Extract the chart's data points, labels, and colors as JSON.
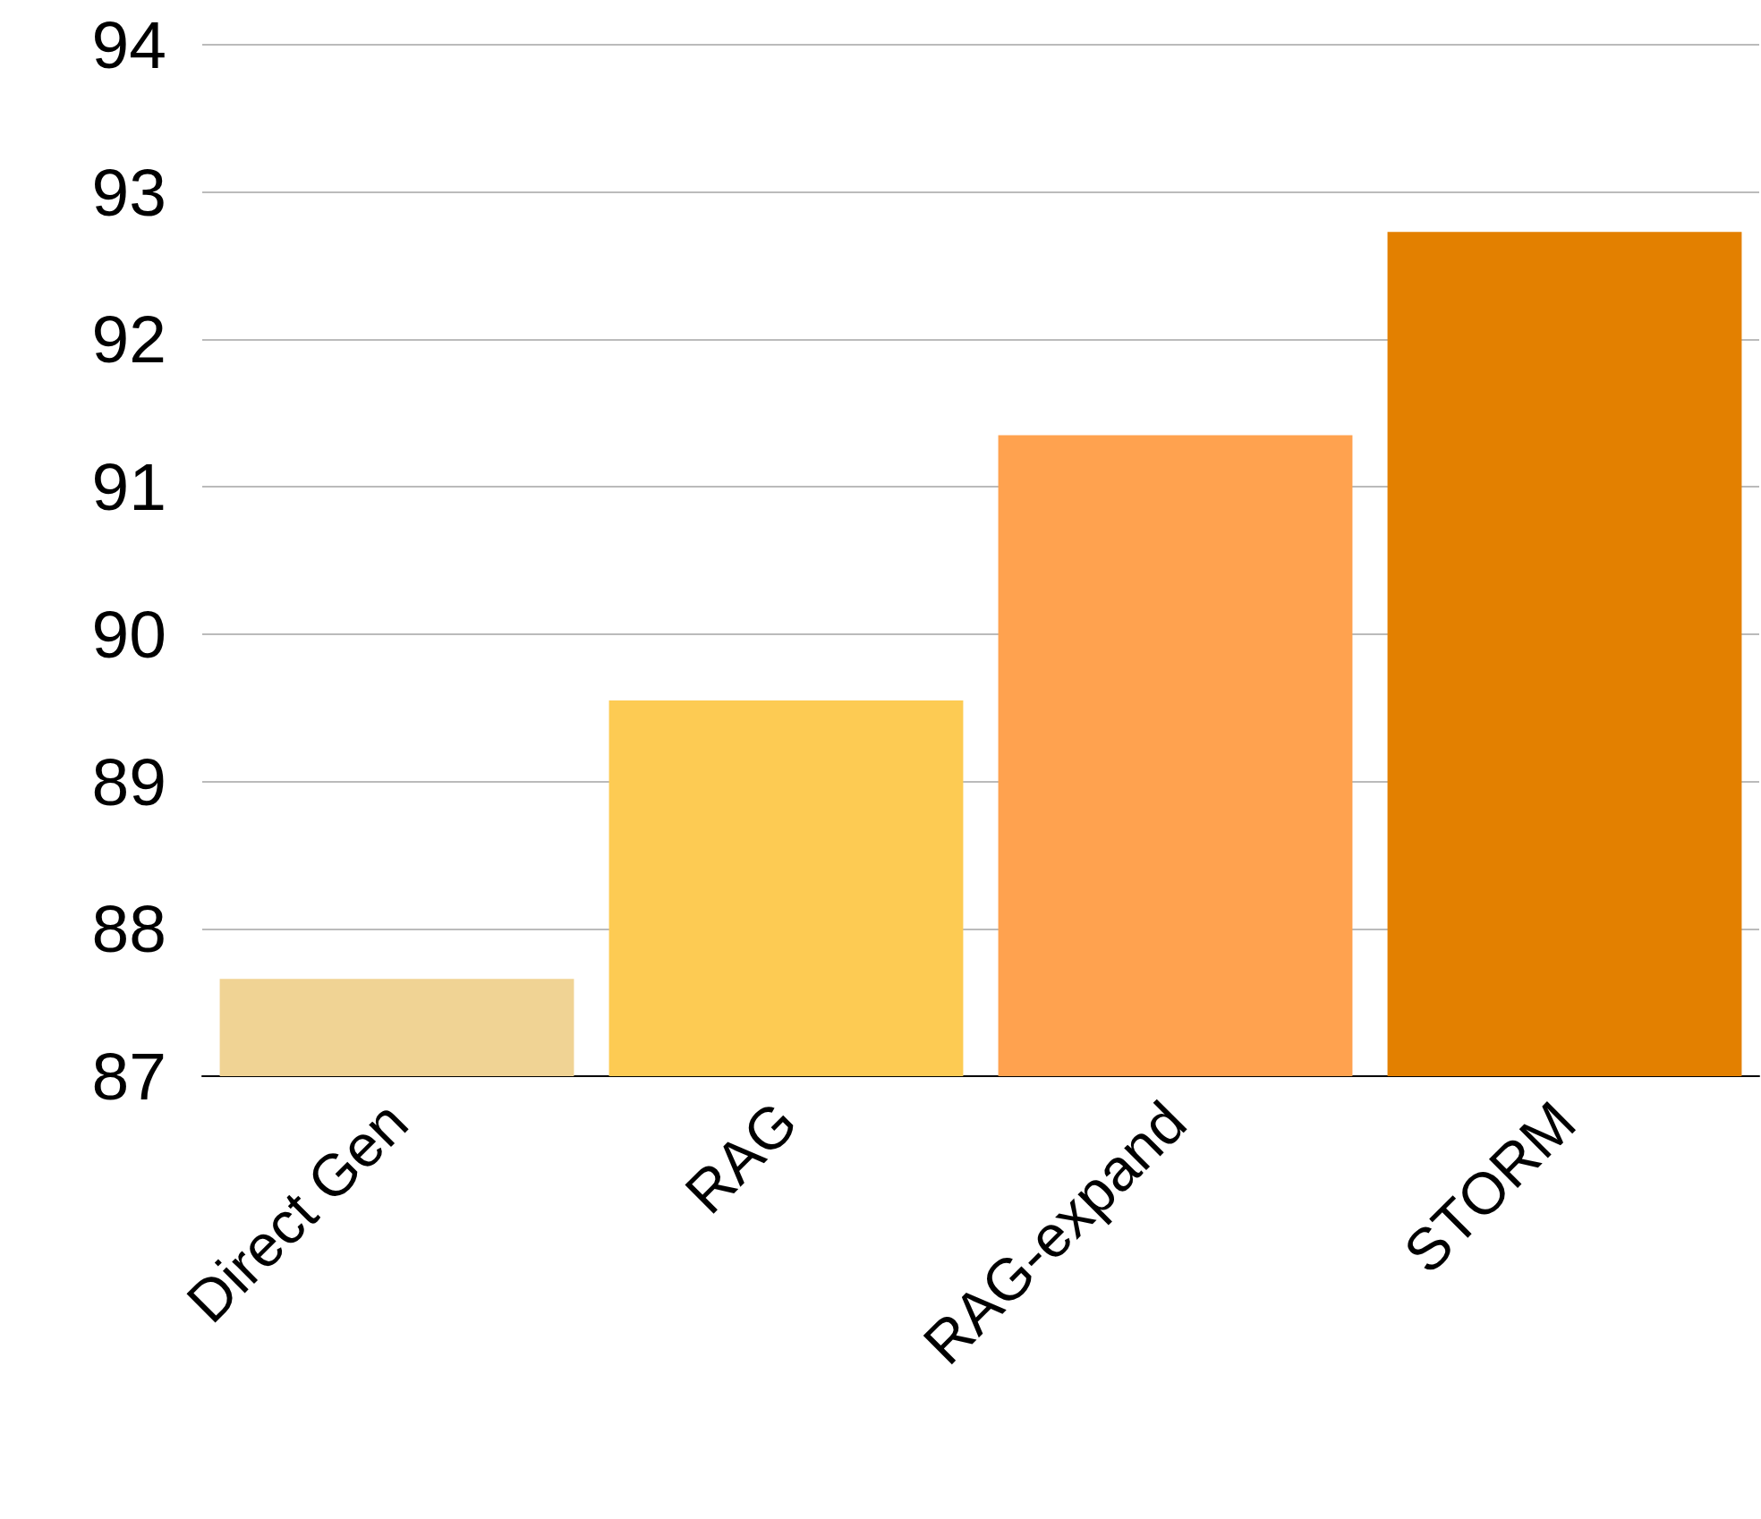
{
  "chart_data": {
    "type": "bar",
    "categories": [
      "Direct Gen",
      "RAG",
      "RAG-expand",
      "STORM"
    ],
    "values": [
      87.66,
      89.55,
      91.35,
      92.73
    ],
    "colors": [
      "#f0d394",
      "#fdcb53",
      "#ffa24f",
      "#e38000"
    ],
    "ylim": [
      87,
      94
    ],
    "yticks": [
      87,
      88,
      89,
      90,
      91,
      92,
      93,
      94
    ],
    "grid": "y"
  }
}
